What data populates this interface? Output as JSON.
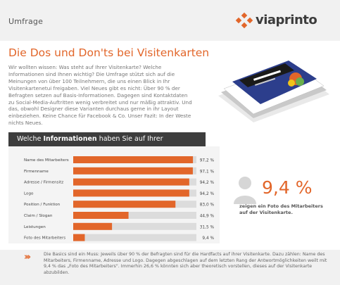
{
  "header": {
    "section_label": "Umfrage",
    "logo_text": "viaprinto"
  },
  "title": "Die Dos und Don'ts bei Visitenkarten",
  "intro": "Wir wollten wissen: Was steht auf Ihrer Visitenkarte? Welche Informationen sind Ihnen wichtig? Die Umfrage stützt sich auf die Meinungen von über 100 Teilnehmern, die uns einen Blick in Ihr Visitenkartenetui freigaben. Viel Neues gibt es nicht: Über 90 % der Befragten setzen auf Basis-Informationen. Dagegen sind Kontaktdaten zu Social-Media-Auftritten wenig verbreitet und nur mäßig attraktiv. Und das, obwohl Designer diese Varianten durchaus gerne in ihr Layout einbeziehen. Keine Chance für Facebook & Co. Unser Fazit: In der Weste nichts Neues.",
  "chart_header": {
    "prefix": "Welche ",
    "bold": "Informationen",
    "suffix": " haben Sie auf Ihrer Visitenkarte?"
  },
  "chart_data": {
    "type": "bar",
    "orientation": "horizontal",
    "title": "Welche Informationen haben Sie auf Ihrer Visitenkarte?",
    "categories": [
      "Name des Mitarbeiters",
      "Firmenname",
      "Adresse / Firmensitz",
      "Logo",
      "Position / Funktion",
      "Claim / Slogan",
      "Leistungen",
      "Foto des Mitarbeiters"
    ],
    "values": [
      97.2,
      97.1,
      94.2,
      94.2,
      83.0,
      44.9,
      31.5,
      9.4
    ],
    "value_labels": [
      "97,2 %",
      "97,1 %",
      "94,2 %",
      "94,2 %",
      "83,0 %",
      "44,9 %",
      "31,5 %",
      "9,4 %"
    ],
    "xlim": [
      0,
      100
    ],
    "bar_color": "#e2662a",
    "track_color": "#dcdcdc"
  },
  "stat": {
    "value": "9,4 %",
    "caption": "zeigen ein Foto des Mitarbeiters auf der Visitenkarte."
  },
  "footer": {
    "arrows": "›››",
    "text": "Die Basics sind ein Muss: Jeweils über 90 % der Befragten sind für die Hardfacts auf ihrer Visitenkarte. Dazu zählen: Name des Mitarbeiters, Firmenname, Adresse und Logo. Dagegen abgeschlagen auf dem letzten Rang der Antwortmöglichkeiten weilt mit 9,4 % das „Foto des Mitarbeiters\". Immerhin 26,6 % könnten sich aber theoretisch vorstellen, dieses auf der Visitenkarte abzubilden."
  },
  "colors": {
    "accent": "#e2662a",
    "dark": "#3d3d3d"
  }
}
